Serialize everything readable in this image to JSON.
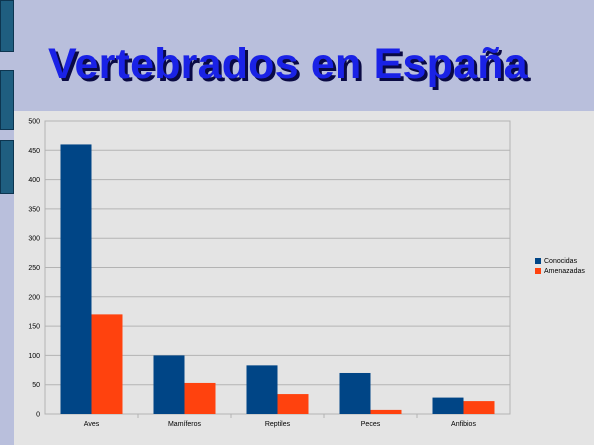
{
  "slide": {
    "title": "Vertebrados en España"
  },
  "colors": {
    "background": "#b9bfdc",
    "title": "#1a22e6",
    "plot_area": "#e4e4e4",
    "conocidas": "#004586",
    "amenazadas": "#ff420e"
  },
  "chart_data": {
    "type": "bar",
    "categories": [
      "Aves",
      "Mamíferos",
      "Reptiles",
      "Peces",
      "Anfibios"
    ],
    "series": [
      {
        "name": "Conocidas",
        "values": [
          460,
          100,
          83,
          70,
          28
        ]
      },
      {
        "name": "Amenazadas",
        "values": [
          170,
          53,
          34,
          7,
          22
        ]
      }
    ],
    "ylim": [
      0,
      500
    ],
    "yticks": [
      0,
      50,
      100,
      150,
      200,
      250,
      300,
      350,
      400,
      450,
      500
    ],
    "grid": true,
    "legend_position": "right"
  }
}
